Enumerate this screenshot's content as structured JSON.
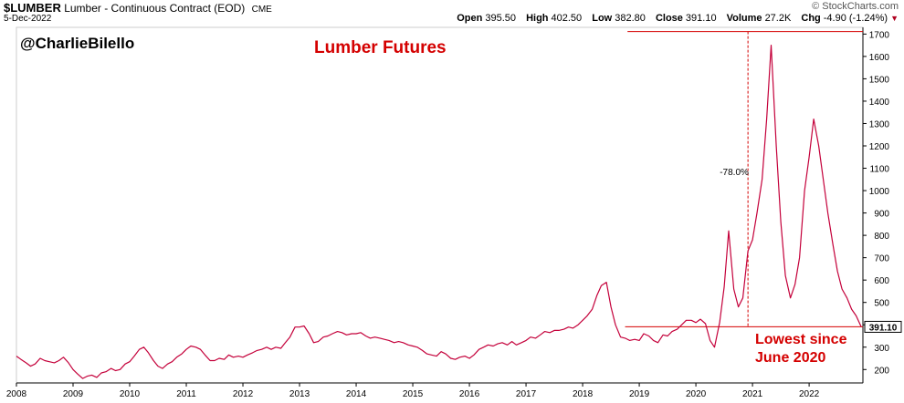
{
  "header": {
    "symbol": "$LUMBER",
    "name": "Lumber - Continuous Contract (EOD)",
    "exchange": "CME",
    "date": "5-Dec-2022",
    "credit": "© StockCharts.com",
    "quote": {
      "open_label": "Open",
      "open": "395.50",
      "high_label": "High",
      "high": "402.50",
      "low_label": "Low",
      "low": "382.80",
      "close_label": "Close",
      "close": "391.10",
      "volume_label": "Volume",
      "volume": "27.2K",
      "chg_label": "Chg",
      "chg": "-4.90 (-1.24%)"
    }
  },
  "watermark": "@CharlieBilello",
  "annotation_note_line1": "Lowest since",
  "annotation_note_line2": "June 2020",
  "colors": {
    "line": "#c4003a",
    "annotation": "#d40000",
    "grid": "#e4e4e4",
    "axis": "#000000"
  },
  "chart_data": {
    "type": "line",
    "title": "Lumber Futures",
    "xlabel": "",
    "ylabel": "",
    "x_ticks": [
      "2008",
      "2009",
      "2010",
      "2011",
      "2012",
      "2013",
      "2014",
      "2015",
      "2016",
      "2017",
      "2018",
      "2019",
      "2020",
      "2021",
      "2022"
    ],
    "y_ticks": [
      200,
      300,
      400,
      500,
      600,
      700,
      800,
      900,
      1000,
      1100,
      1200,
      1300,
      1400,
      1500,
      1600,
      1700
    ],
    "ylim": [
      140,
      1730
    ],
    "xlim": [
      2008.0,
      2022.95
    ],
    "y_axis_side": "right",
    "grid": false,
    "series": [
      {
        "x": [
          2008.0,
          2008.08,
          2008.17,
          2008.25,
          2008.33,
          2008.42,
          2008.5,
          2008.58,
          2008.67,
          2008.75,
          2008.83,
          2008.92,
          2009.0,
          2009.08,
          2009.17,
          2009.25,
          2009.33,
          2009.42,
          2009.5,
          2009.58,
          2009.67,
          2009.75,
          2009.83,
          2009.92,
          2010.0,
          2010.08,
          2010.17,
          2010.25,
          2010.33,
          2010.42,
          2010.5,
          2010.58,
          2010.67,
          2010.75,
          2010.83,
          2010.92,
          2011.0,
          2011.08,
          2011.17,
          2011.25,
          2011.33,
          2011.42,
          2011.5,
          2011.58,
          2011.67,
          2011.75,
          2011.83,
          2011.92,
          2012.0,
          2012.08,
          2012.17,
          2012.25,
          2012.33,
          2012.42,
          2012.5,
          2012.58,
          2012.67,
          2012.75,
          2012.83,
          2012.92,
          2013.0,
          2013.08,
          2013.17,
          2013.25,
          2013.33,
          2013.42,
          2013.5,
          2013.58,
          2013.67,
          2013.75,
          2013.83,
          2013.92,
          2014.0,
          2014.08,
          2014.17,
          2014.25,
          2014.33,
          2014.42,
          2014.5,
          2014.58,
          2014.67,
          2014.75,
          2014.83,
          2014.92,
          2015.0,
          2015.08,
          2015.17,
          2015.25,
          2015.33,
          2015.42,
          2015.5,
          2015.58,
          2015.67,
          2015.75,
          2015.83,
          2015.92,
          2016.0,
          2016.08,
          2016.17,
          2016.25,
          2016.33,
          2016.42,
          2016.5,
          2016.58,
          2016.67,
          2016.75,
          2016.83,
          2016.92,
          2017.0,
          2017.08,
          2017.17,
          2017.25,
          2017.33,
          2017.42,
          2017.5,
          2017.58,
          2017.67,
          2017.75,
          2017.83,
          2017.92,
          2018.0,
          2018.08,
          2018.17,
          2018.25,
          2018.33,
          2018.42,
          2018.5,
          2018.58,
          2018.67,
          2018.75,
          2018.83,
          2018.92,
          2019.0,
          2019.08,
          2019.17,
          2019.25,
          2019.33,
          2019.42,
          2019.5,
          2019.58,
          2019.67,
          2019.75,
          2019.83,
          2019.92,
          2020.0,
          2020.08,
          2020.17,
          2020.25,
          2020.33,
          2020.42,
          2020.5,
          2020.58,
          2020.67,
          2020.75,
          2020.83,
          2020.92,
          2021.0,
          2021.08,
          2021.17,
          2021.25,
          2021.33,
          2021.42,
          2021.5,
          2021.58,
          2021.67,
          2021.75,
          2021.83,
          2021.92,
          2022.0,
          2022.08,
          2022.17,
          2022.25,
          2022.33,
          2022.42,
          2022.5,
          2022.58,
          2022.67,
          2022.75,
          2022.83,
          2022.92
        ],
        "y": [
          260,
          245,
          230,
          215,
          225,
          250,
          240,
          235,
          230,
          240,
          255,
          230,
          200,
          180,
          160,
          170,
          175,
          165,
          185,
          190,
          205,
          195,
          200,
          225,
          235,
          260,
          290,
          300,
          275,
          240,
          215,
          205,
          225,
          235,
          255,
          270,
          290,
          305,
          300,
          290,
          265,
          240,
          240,
          250,
          245,
          265,
          255,
          260,
          255,
          265,
          275,
          285,
          290,
          300,
          290,
          300,
          295,
          320,
          345,
          390,
          390,
          395,
          360,
          320,
          325,
          345,
          350,
          360,
          370,
          365,
          355,
          360,
          360,
          365,
          350,
          340,
          345,
          340,
          335,
          330,
          320,
          325,
          320,
          310,
          305,
          300,
          285,
          270,
          265,
          260,
          280,
          270,
          250,
          245,
          255,
          260,
          250,
          265,
          290,
          300,
          310,
          305,
          315,
          320,
          310,
          325,
          310,
          320,
          330,
          345,
          340,
          355,
          370,
          365,
          375,
          375,
          380,
          390,
          385,
          400,
          420,
          440,
          470,
          530,
          575,
          590,
          480,
          400,
          345,
          340,
          330,
          335,
          330,
          360,
          350,
          330,
          320,
          355,
          350,
          370,
          380,
          400,
          420,
          420,
          410,
          425,
          405,
          330,
          300,
          410,
          570,
          820,
          560,
          480,
          520,
          730,
          780,
          900,
          1050,
          1320,
          1650,
          1200,
          860,
          620,
          520,
          580,
          700,
          1000,
          1150,
          1320,
          1200,
          1050,
          900,
          760,
          640,
          560,
          520,
          470,
          440,
          391
        ]
      }
    ],
    "last_value_label": "391.10",
    "annotations": [
      {
        "type": "hline",
        "y": 1711
      },
      {
        "type": "hline",
        "y": 391
      },
      {
        "type": "vline",
        "x": 2020.92,
        "y_range": [
          391,
          1711
        ]
      },
      {
        "type": "text",
        "text": "-78.0%",
        "x": 2020.97,
        "y": 1085
      }
    ]
  }
}
